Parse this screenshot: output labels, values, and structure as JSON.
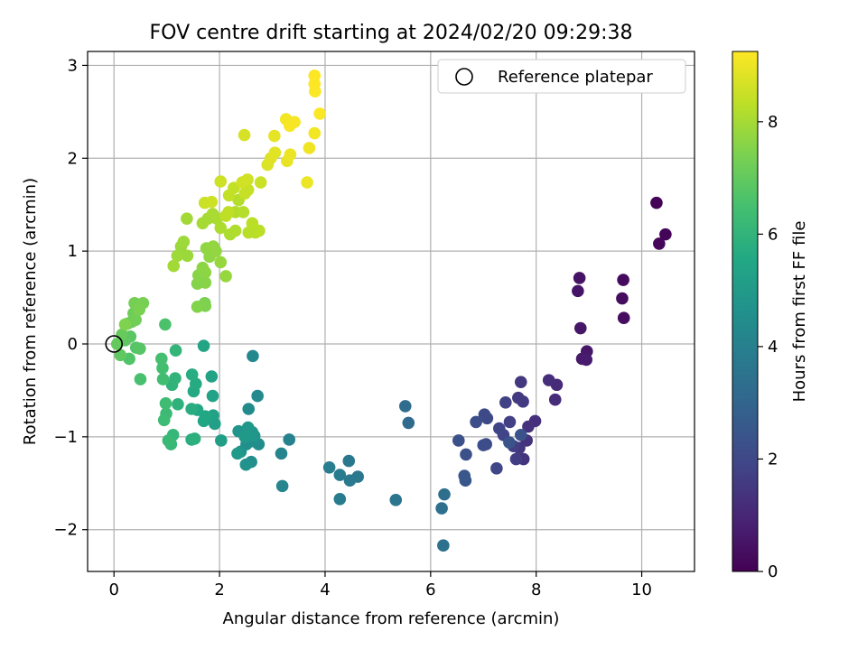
{
  "chart_data": {
    "type": "scatter",
    "title": "FOV centre drift starting at 2024/02/20 09:29:38",
    "xlabel": "Angular distance from reference (arcmin)",
    "ylabel": "Rotation from reference (arcmin)",
    "xlim": [
      -0.5,
      11.0
    ],
    "ylim": [
      -2.45,
      3.15
    ],
    "xticks": [
      0,
      2,
      4,
      6,
      8,
      10
    ],
    "yticks": [
      -2,
      -1,
      0,
      1,
      2,
      3
    ],
    "grid": true,
    "legend": {
      "position": "upper right",
      "entries": [
        "Reference platepar"
      ]
    },
    "reference_marker": {
      "label": "Reference platepar",
      "x": 0,
      "y": 0,
      "marker": "open circle"
    },
    "colorbar": {
      "label": "Hours from first FF file",
      "colormap": "viridis",
      "min": 0,
      "max": 9.25,
      "ticks": [
        0,
        2,
        4,
        6,
        8
      ]
    },
    "series": [
      {
        "color_by": "hours",
        "points": [
          [
            10.28,
            1.52,
            0.05
          ],
          [
            10.45,
            1.18,
            0.1
          ],
          [
            10.33,
            1.08,
            0.15
          ],
          [
            9.65,
            0.69,
            0.25
          ],
          [
            9.63,
            0.49,
            0.3
          ],
          [
            9.66,
            0.28,
            0.35
          ],
          [
            8.82,
            0.71,
            0.45
          ],
          [
            8.79,
            0.57,
            0.5
          ],
          [
            8.84,
            0.17,
            0.55
          ],
          [
            8.96,
            -0.08,
            0.6
          ],
          [
            8.87,
            -0.16,
            0.65
          ],
          [
            8.95,
            -0.17,
            0.7
          ],
          [
            8.39,
            -0.44,
            1.1
          ],
          [
            8.36,
            -0.6,
            1.15
          ],
          [
            8.24,
            -0.39,
            1.2
          ],
          [
            7.98,
            -0.83,
            1.25
          ],
          [
            7.85,
            -0.89,
            1.3
          ],
          [
            7.82,
            -1.04,
            1.35
          ],
          [
            7.76,
            -1.24,
            1.4
          ],
          [
            7.68,
            -1.12,
            1.45
          ],
          [
            7.71,
            -0.41,
            1.5
          ],
          [
            7.66,
            -0.58,
            1.55
          ],
          [
            7.75,
            -0.62,
            1.6
          ],
          [
            7.62,
            -1.24,
            1.65
          ],
          [
            7.57,
            -1.1,
            1.7
          ],
          [
            7.5,
            -0.84,
            1.75
          ],
          [
            7.42,
            -0.63,
            1.8
          ],
          [
            7.38,
            -0.98,
            1.85
          ],
          [
            7.3,
            -0.91,
            1.9
          ],
          [
            7.25,
            -1.34,
            1.95
          ],
          [
            7.07,
            -0.8,
            2.0
          ],
          [
            7.02,
            -0.76,
            2.05
          ],
          [
            7.05,
            -1.08,
            2.1
          ],
          [
            7.0,
            -1.09,
            2.15
          ],
          [
            6.86,
            -0.84,
            2.2
          ],
          [
            6.67,
            -1.19,
            2.25
          ],
          [
            6.53,
            -1.04,
            2.3
          ],
          [
            7.71,
            -0.98,
            2.35
          ],
          [
            7.49,
            -1.06,
            2.4
          ],
          [
            6.66,
            -1.47,
            2.45
          ],
          [
            6.64,
            -1.42,
            2.5
          ],
          [
            5.58,
            -0.85,
            3.2
          ],
          [
            5.52,
            -0.67,
            3.25
          ],
          [
            6.26,
            -1.62,
            3.35
          ],
          [
            6.21,
            -1.77,
            3.4
          ],
          [
            6.24,
            -2.17,
            3.45
          ],
          [
            5.34,
            -1.68,
            3.6
          ],
          [
            4.62,
            -1.43,
            3.65
          ],
          [
            4.45,
            -1.26,
            3.7
          ],
          [
            4.47,
            -1.47,
            3.75
          ],
          [
            4.28,
            -1.41,
            3.8
          ],
          [
            4.28,
            -1.67,
            3.85
          ],
          [
            4.08,
            -1.33,
            3.9
          ],
          [
            3.32,
            -1.03,
            4.1
          ],
          [
            3.17,
            -1.18,
            4.15
          ],
          [
            3.19,
            -1.53,
            4.2
          ],
          [
            2.63,
            -0.13,
            4.3
          ],
          [
            2.72,
            -0.56,
            4.35
          ],
          [
            2.55,
            -0.7,
            4.4
          ],
          [
            2.74,
            -1.08,
            4.45
          ],
          [
            2.66,
            -1.05,
            4.5
          ],
          [
            2.6,
            -1.27,
            4.55
          ],
          [
            2.51,
            -1.08,
            4.6
          ],
          [
            2.5,
            -1.3,
            4.65
          ],
          [
            2.4,
            -1.16,
            4.7
          ],
          [
            2.36,
            -0.94,
            4.75
          ],
          [
            2.66,
            -0.99,
            4.8
          ],
          [
            2.62,
            -0.95,
            4.85
          ],
          [
            2.54,
            -0.9,
            4.9
          ],
          [
            2.48,
            -1.0,
            4.95
          ],
          [
            2.34,
            -1.18,
            5.0
          ],
          [
            2.03,
            -1.04,
            5.15
          ],
          [
            1.91,
            -0.86,
            5.2
          ],
          [
            1.88,
            -0.77,
            5.25
          ],
          [
            1.87,
            -0.56,
            5.3
          ],
          [
            1.85,
            -0.35,
            5.35
          ],
          [
            1.7,
            -0.02,
            5.4
          ],
          [
            1.7,
            -0.83,
            5.45
          ],
          [
            1.73,
            -0.78,
            5.5
          ],
          [
            1.58,
            -0.71,
            5.55
          ],
          [
            1.51,
            -0.51,
            5.6
          ],
          [
            1.55,
            -0.43,
            5.65
          ],
          [
            1.48,
            -0.33,
            5.7
          ],
          [
            1.47,
            -0.7,
            5.75
          ],
          [
            1.47,
            -1.03,
            5.8
          ],
          [
            1.53,
            -1.02,
            5.85
          ],
          [
            1.21,
            -0.65,
            5.9
          ],
          [
            1.1,
            -0.44,
            5.95
          ],
          [
            1.16,
            -0.37,
            6.0
          ],
          [
            1.17,
            -0.07,
            6.05
          ],
          [
            1.12,
            -0.98,
            6.1
          ],
          [
            1.08,
            -1.08,
            6.15
          ],
          [
            1.03,
            -1.04,
            6.2
          ],
          [
            0.99,
            -0.75,
            6.25
          ],
          [
            0.95,
            -0.82,
            6.3
          ],
          [
            0.98,
            -0.64,
            6.35
          ],
          [
            0.93,
            -0.38,
            6.4
          ],
          [
            0.92,
            -0.26,
            6.45
          ],
          [
            0.9,
            -0.16,
            6.5
          ],
          [
            0.5,
            -0.38,
            6.55
          ],
          [
            0.97,
            0.21,
            6.6
          ],
          [
            0.29,
            -0.16,
            6.7
          ],
          [
            0.42,
            -0.04,
            6.75
          ],
          [
            0.49,
            -0.05,
            6.8
          ],
          [
            0.31,
            0.08,
            6.85
          ],
          [
            0.21,
            0.04,
            6.9
          ],
          [
            0.12,
            -0.12,
            6.95
          ],
          [
            0.06,
            0.0,
            7.0
          ],
          [
            0.15,
            0.1,
            7.05
          ],
          [
            0.26,
            0.22,
            7.1
          ],
          [
            0.34,
            0.24,
            7.15
          ],
          [
            0.37,
            0.33,
            7.2
          ],
          [
            0.41,
            0.26,
            7.25
          ],
          [
            0.39,
            0.44,
            7.3
          ],
          [
            0.55,
            0.44,
            7.35
          ],
          [
            0.48,
            0.37,
            7.4
          ],
          [
            0.21,
            0.21,
            7.45
          ],
          [
            1.72,
            0.44,
            7.4
          ],
          [
            1.73,
            0.41,
            7.45
          ],
          [
            1.58,
            0.4,
            7.5
          ],
          [
            1.58,
            0.65,
            7.55
          ],
          [
            1.6,
            0.74,
            7.6
          ],
          [
            1.73,
            0.66,
            7.6
          ],
          [
            1.73,
            0.77,
            7.65
          ],
          [
            1.68,
            0.82,
            7.65
          ],
          [
            1.81,
            0.94,
            7.7
          ],
          [
            1.75,
            1.03,
            7.7
          ],
          [
            1.88,
            1.05,
            7.75
          ],
          [
            1.93,
            1.0,
            7.75
          ],
          [
            2.02,
            0.88,
            7.8
          ],
          [
            2.12,
            0.73,
            7.8
          ],
          [
            1.39,
            0.95,
            7.85
          ],
          [
            1.27,
            1.05,
            7.85
          ],
          [
            1.32,
            1.1,
            7.9
          ],
          [
            1.2,
            0.95,
            7.9
          ],
          [
            1.13,
            0.84,
            7.95
          ],
          [
            1.38,
            1.35,
            7.95
          ],
          [
            1.68,
            1.3,
            8.0
          ],
          [
            1.78,
            1.35,
            8.0
          ],
          [
            1.87,
            1.4,
            8.05
          ],
          [
            1.95,
            1.35,
            8.05
          ],
          [
            2.02,
            1.25,
            8.1
          ],
          [
            2.2,
            1.18,
            8.1
          ],
          [
            2.3,
            1.22,
            8.15
          ],
          [
            2.3,
            1.42,
            8.15
          ],
          [
            2.36,
            1.55,
            8.2
          ],
          [
            2.45,
            1.42,
            8.2
          ],
          [
            2.55,
            1.2,
            8.25
          ],
          [
            2.68,
            1.2,
            8.25
          ],
          [
            2.75,
            1.22,
            8.3
          ],
          [
            2.62,
            1.3,
            8.3
          ],
          [
            2.17,
            1.42,
            8.35
          ],
          [
            2.12,
            1.38,
            8.35
          ],
          [
            2.18,
            1.6,
            8.4
          ],
          [
            2.27,
            1.68,
            8.4
          ],
          [
            2.48,
            1.62,
            8.45
          ],
          [
            2.54,
            1.66,
            8.45
          ],
          [
            2.78,
            1.74,
            8.5
          ],
          [
            1.72,
            1.52,
            8.5
          ],
          [
            1.85,
            1.53,
            8.55
          ],
          [
            2.02,
            1.75,
            8.55
          ],
          [
            2.43,
            1.74,
            8.6
          ],
          [
            2.53,
            1.77,
            8.6
          ],
          [
            2.47,
            2.25,
            8.7
          ],
          [
            2.91,
            1.93,
            8.75
          ],
          [
            2.97,
            2.0,
            8.8
          ],
          [
            3.05,
            2.06,
            8.85
          ],
          [
            3.04,
            2.24,
            8.9
          ],
          [
            3.28,
            1.97,
            8.95
          ],
          [
            3.34,
            2.04,
            9.0
          ],
          [
            3.66,
            1.74,
            9.0
          ],
          [
            3.7,
            2.11,
            9.05
          ],
          [
            3.8,
            2.27,
            9.1
          ],
          [
            3.26,
            2.42,
            9.1
          ],
          [
            3.33,
            2.35,
            9.15
          ],
          [
            3.42,
            2.39,
            9.15
          ],
          [
            3.9,
            2.48,
            9.2
          ],
          [
            3.81,
            2.72,
            9.2
          ],
          [
            3.8,
            2.8,
            9.25
          ],
          [
            3.8,
            2.89,
            9.25
          ]
        ]
      }
    ]
  }
}
